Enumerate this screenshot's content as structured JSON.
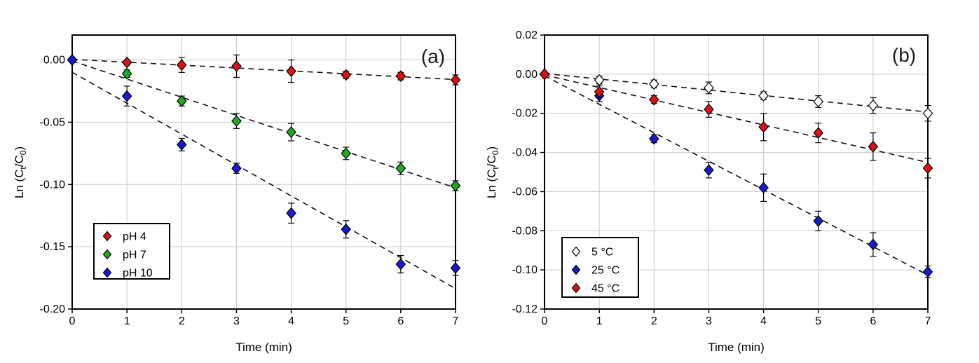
{
  "figure": {
    "description": "Two-panel kinetics figure of Ln(Ct/C0) versus time with dashed linear regression lines and error bars",
    "colors": {
      "background": "#ffffff",
      "axis": "#000000",
      "grid": "#c9c9c9",
      "trendline": "#111111",
      "red": "#dd1111",
      "green": "#1faa1f",
      "blue": "#1a1acd",
      "open_marker_fill": "#ffffff"
    }
  },
  "chart_data": [
    {
      "type": "scatter",
      "id": "a",
      "panel_label": "(a)",
      "xlabel": "Time (min)",
      "ylabel": "Ln (Ct/C0)",
      "ylabel_segments": [
        {
          "text": "Ln (C"
        },
        {
          "text": "t",
          "sub": true
        },
        {
          "text": "/C"
        },
        {
          "text": "0",
          "sub": true
        },
        {
          "text": ")"
        }
      ],
      "x": [
        0,
        1,
        2,
        3,
        4,
        5,
        6,
        7
      ],
      "xlim": [
        0,
        7
      ],
      "ylim": [
        -0.2,
        0.02
      ],
      "xticks": [
        0,
        1,
        2,
        3,
        4,
        5,
        6,
        7
      ],
      "yticks": [
        {
          "value": 0.0,
          "label": "0.00"
        },
        {
          "value": -0.05,
          "label": "-0.05"
        },
        {
          "value": -0.1,
          "label": "-0.10"
        },
        {
          "value": -0.15,
          "label": "-0.15"
        },
        {
          "value": -0.2,
          "label": "-0.20"
        }
      ],
      "grid": true,
      "legend_position": "lower-left",
      "series": [
        {
          "name": "pH 4",
          "marker": "diamond",
          "fill": "#dd1111",
          "trendline": "dashed-linear-fit",
          "values": [
            0.0,
            -0.002,
            -0.004,
            -0.005,
            -0.009,
            -0.012,
            -0.013,
            -0.016
          ],
          "errors": [
            0.0,
            0.002,
            0.006,
            0.009,
            0.009,
            0.003,
            0.003,
            0.004
          ]
        },
        {
          "name": "pH 7",
          "marker": "diamond",
          "fill": "#1faa1f",
          "trendline": "dashed-linear-fit",
          "values": [
            0.0,
            -0.011,
            -0.033,
            -0.049,
            -0.058,
            -0.075,
            -0.087,
            -0.101
          ],
          "errors": [
            0.0,
            0.003,
            0.004,
            0.006,
            0.007,
            0.005,
            0.005,
            0.004
          ]
        },
        {
          "name": "pH 10",
          "marker": "diamond",
          "fill": "#1a1acd",
          "trendline": "dashed-linear-fit",
          "values": [
            0.0,
            -0.029,
            -0.068,
            -0.087,
            -0.123,
            -0.136,
            -0.164,
            -0.167
          ],
          "errors": [
            0.0,
            0.008,
            0.005,
            0.004,
            0.008,
            0.007,
            0.007,
            0.006
          ]
        }
      ]
    },
    {
      "type": "scatter",
      "id": "b",
      "panel_label": "(b)",
      "xlabel": "Time (min)",
      "ylabel": "Ln (Ct/C0)",
      "ylabel_segments": [
        {
          "text": "Ln (C"
        },
        {
          "text": "t",
          "sub": true
        },
        {
          "text": "/C"
        },
        {
          "text": "0",
          "sub": true
        },
        {
          "text": ")"
        }
      ],
      "x": [
        0,
        1,
        2,
        3,
        4,
        5,
        6,
        7
      ],
      "xlim": [
        0,
        7
      ],
      "ylim": [
        -0.12,
        0.02
      ],
      "xticks": [
        0,
        1,
        2,
        3,
        4,
        5,
        6,
        7
      ],
      "yticks": [
        {
          "value": 0.02,
          "label": "0.02"
        },
        {
          "value": 0.0,
          "label": "0.00"
        },
        {
          "value": -0.02,
          "label": "-0.02"
        },
        {
          "value": -0.04,
          "label": "-0.04"
        },
        {
          "value": -0.06,
          "label": "-0.06"
        },
        {
          "value": -0.08,
          "label": "-0.08"
        },
        {
          "value": -0.1,
          "label": "-0.10"
        },
        {
          "value": -0.12,
          "label": "-0.12"
        }
      ],
      "grid": true,
      "legend_position": "lower-left",
      "series": [
        {
          "name": "5 °C",
          "marker": "diamond",
          "fill": "#ffffff",
          "trendline": "dashed-linear-fit",
          "values": [
            0.0,
            -0.003,
            -0.005,
            -0.007,
            -0.011,
            -0.014,
            -0.016,
            -0.02
          ],
          "errors": [
            0.0,
            0.002,
            0.002,
            0.003,
            0.002,
            0.003,
            0.004,
            0.004
          ]
        },
        {
          "name": "25 °C",
          "marker": "diamond",
          "fill": "#1a1acd",
          "trendline": "dashed-linear-fit",
          "values": [
            0.0,
            -0.011,
            -0.033,
            -0.049,
            -0.058,
            -0.075,
            -0.087,
            -0.101
          ],
          "errors": [
            0.0,
            0.003,
            0.002,
            0.004,
            0.007,
            0.005,
            0.006,
            0.003
          ]
        },
        {
          "name": "45 °C",
          "marker": "diamond",
          "fill": "#dd1111",
          "trendline": "dashed-linear-fit",
          "values": [
            0.0,
            -0.009,
            -0.013,
            -0.018,
            -0.027,
            -0.03,
            -0.037,
            -0.048
          ],
          "errors": [
            0.0,
            0.003,
            0.002,
            0.004,
            0.007,
            0.005,
            0.007,
            0.005
          ]
        }
      ]
    }
  ]
}
